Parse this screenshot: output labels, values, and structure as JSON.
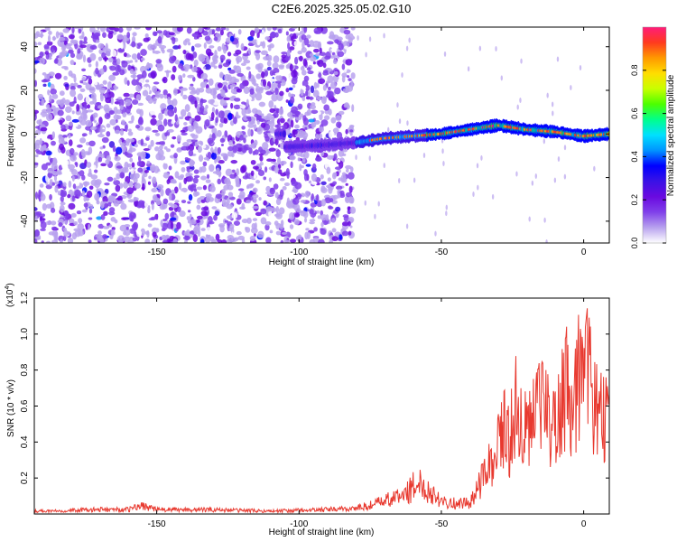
{
  "title": "C2E6.2025.325.05.02.G10",
  "colors": {
    "snr_line": "#e8392f",
    "colormap": [
      "#ffffff",
      "#b8a2ee",
      "#8040ea",
      "#6a0ae0",
      "#3a12e6",
      "#0000ff",
      "#0094ff",
      "#00e0ff",
      "#00ff8c",
      "#4cff00",
      "#c8ff00",
      "#ffdd00",
      "#ff9900",
      "#ff3a1e",
      "#ff1c7a"
    ]
  },
  "chart_data": [
    {
      "type": "heatmap",
      "xlabel": "Height of straight line (km)",
      "ylabel": "Frequency (Hz)",
      "xlim": [
        -193,
        9
      ],
      "ylim": [
        -50,
        49
      ],
      "xticks": [
        -150,
        -100,
        -50,
        0
      ],
      "yticks": [
        -40,
        -20,
        0,
        20,
        40
      ],
      "colorbar": {
        "label": "Normalized spectral amplitude",
        "range": [
          0,
          1
        ],
        "ticks": [
          "0.0",
          "0.2",
          "0.4",
          "0.6",
          "0.8"
        ]
      },
      "ridge": {
        "description_points_x": [
          -105,
          -90,
          -80,
          -70,
          -60,
          -50,
          -40,
          -30,
          -20,
          -10,
          0,
          9
        ],
        "description_points_y": [
          -6,
          -5,
          -4,
          -2,
          -1,
          0,
          2,
          4,
          2,
          1,
          -1,
          0
        ]
      }
    },
    {
      "type": "line",
      "xlabel": "Height of straight line (km)",
      "ylabel": "SNR (10 * v/v)",
      "yscale_label": "(x10",
      "yscale_exp": "4",
      "xlim": [
        -193,
        9
      ],
      "ylim": [
        0,
        1.2
      ],
      "xticks": [
        -150,
        -100,
        -50,
        0
      ],
      "yticks": [
        "0.2",
        "0.4",
        "0.6",
        "0.8",
        "1.0",
        "1.2"
      ],
      "series": [
        {
          "name": "SNR",
          "x": [
            -193,
            -170,
            -160,
            -155,
            -150,
            -130,
            -110,
            -90,
            -80,
            -75,
            -70,
            -65,
            -62,
            -58,
            -55,
            -50,
            -45,
            -40,
            -37,
            -34,
            -31,
            -28,
            -26,
            -24,
            -22,
            -20,
            -18,
            -15,
            -12,
            -10,
            -8,
            -6,
            -4,
            -2,
            0,
            2,
            4,
            6,
            8,
            9
          ],
          "y": [
            0.02,
            0.03,
            0.03,
            0.06,
            0.03,
            0.03,
            0.02,
            0.03,
            0.04,
            0.06,
            0.09,
            0.12,
            0.15,
            0.22,
            0.17,
            0.1,
            0.07,
            0.08,
            0.2,
            0.35,
            0.45,
            0.65,
            0.55,
            0.85,
            0.7,
            0.6,
            0.7,
            0.82,
            0.72,
            0.62,
            0.85,
            0.95,
            0.7,
            1.05,
            0.9,
            1.2,
            0.78,
            0.75,
            0.7,
            0.65
          ]
        }
      ]
    }
  ]
}
